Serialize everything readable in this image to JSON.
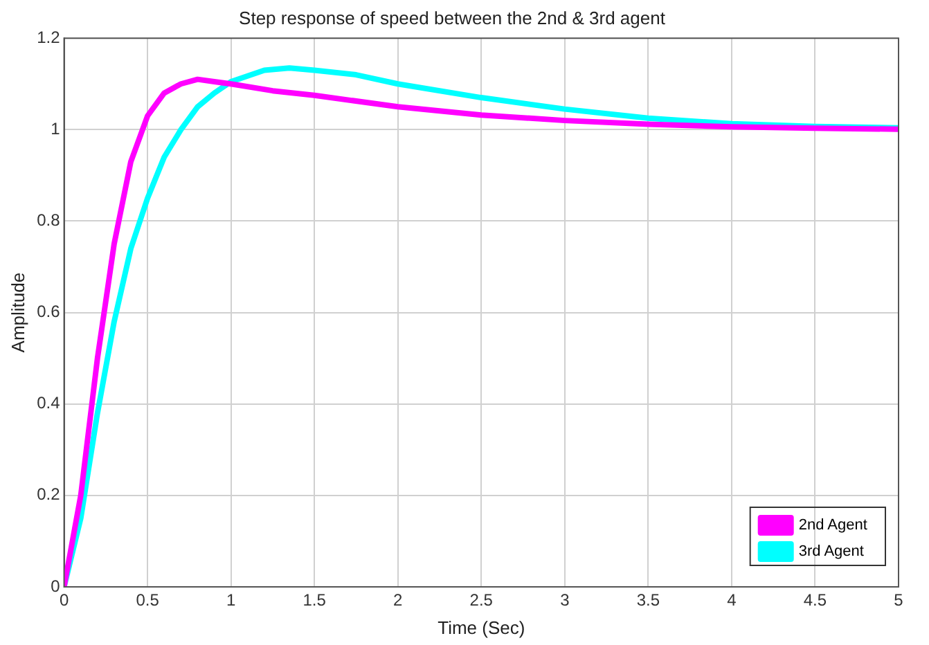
{
  "chart_data": {
    "type": "line",
    "title": "Step response of speed between the 2nd & 3rd agent",
    "xlabel": "Time (Sec)",
    "ylabel": "Amplitude",
    "xlim": [
      0,
      5
    ],
    "xticks": [
      0,
      0.5,
      1,
      1.5,
      2,
      2.5,
      3,
      3.5,
      4,
      4.5,
      5
    ],
    "ylim": [
      0,
      1.2
    ],
    "yticks": [
      0,
      0.2,
      0.4,
      0.6,
      0.8,
      1,
      1.2
    ],
    "grid": true,
    "legend": "bottom right",
    "line_style": "solid",
    "series": [
      {
        "name": "2nd Agent",
        "color": "#ff00ff",
        "x": [
          0,
          0.1,
          0.2,
          0.3,
          0.4,
          0.5,
          0.6,
          0.7,
          0.8,
          0.9,
          1,
          1.25,
          1.5,
          2,
          2.5,
          3,
          3.5,
          4,
          4.5,
          5
        ],
        "values": [
          0,
          0.2,
          0.5,
          0.75,
          0.93,
          1.03,
          1.08,
          1.1,
          1.11,
          1.105,
          1.1,
          1.085,
          1.075,
          1.05,
          1.032,
          1.02,
          1.012,
          1.006,
          1.003,
          1.001
        ]
      },
      {
        "name": "3rd Agent",
        "color": "#00ffff",
        "x": [
          0,
          0.1,
          0.2,
          0.3,
          0.4,
          0.5,
          0.6,
          0.7,
          0.8,
          0.9,
          1,
          1.2,
          1.35,
          1.5,
          1.75,
          2,
          2.5,
          3,
          3.5,
          4,
          4.5,
          5
        ],
        "values": [
          0,
          0.15,
          0.38,
          0.58,
          0.74,
          0.85,
          0.94,
          1,
          1.05,
          1.08,
          1.105,
          1.13,
          1.135,
          1.13,
          1.12,
          1.1,
          1.07,
          1.045,
          1.025,
          1.013,
          1.007,
          1.004
        ]
      }
    ]
  }
}
